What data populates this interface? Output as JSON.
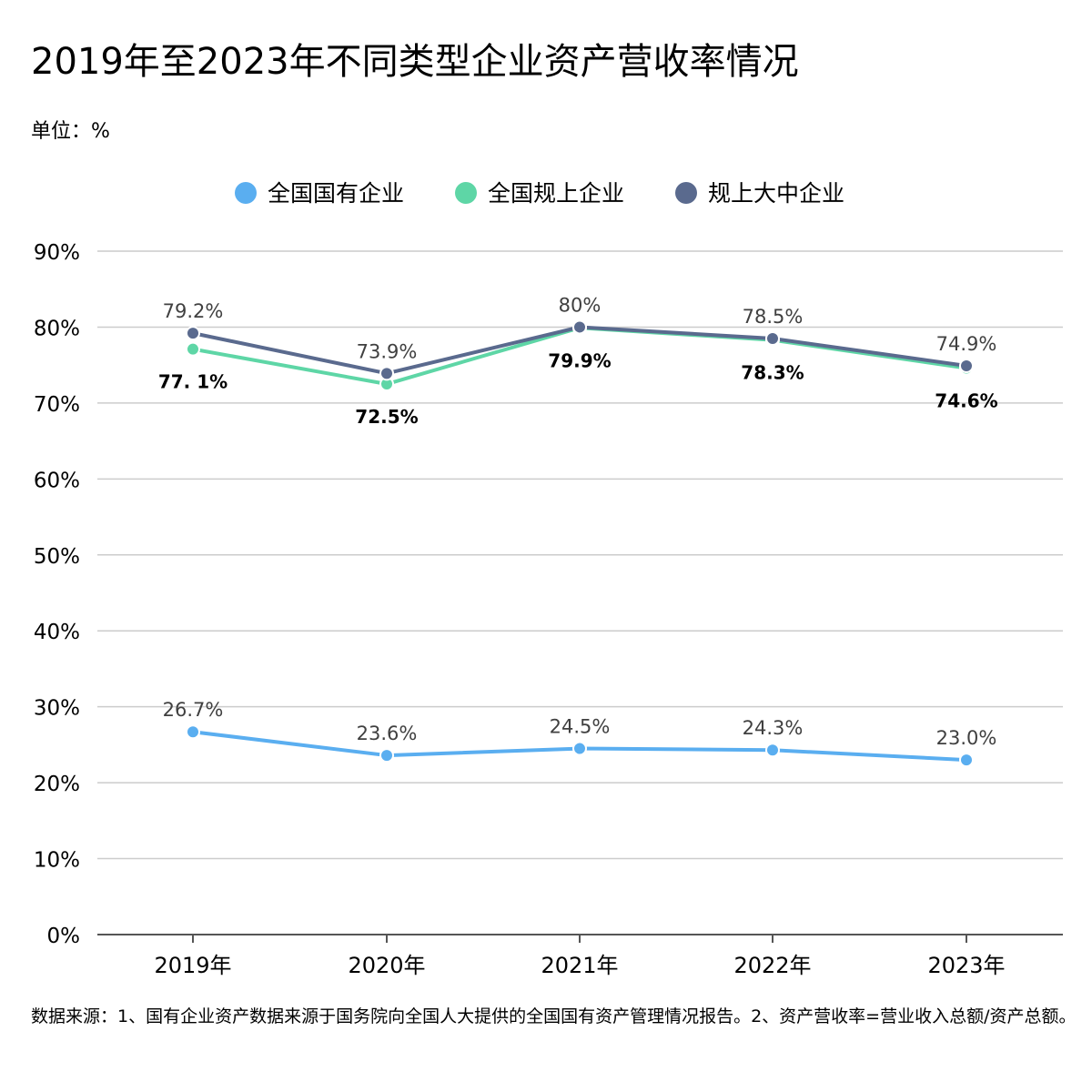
{
  "title": "2019年至2023年不同类型企业资产营收率情况",
  "unit": "单位：%",
  "source": "数据来源：1、国有企业资产数据来源于国务院向全国人大提供的全国国有资产管理情况报告。2、资产营收率=营业收入总额/资产总额。",
  "colors": {
    "series_1": "#5aaef0",
    "series_2": "#5ed6a6",
    "series_3": "#5a6a8e",
    "grid": "#cccccc",
    "axis": "#555555"
  },
  "chart_data": {
    "type": "line",
    "categories": [
      "2019年",
      "2020年",
      "2021年",
      "2022年",
      "2023年"
    ],
    "y_ticks": [
      "0%",
      "10%",
      "20%",
      "30%",
      "40%",
      "50%",
      "60%",
      "70%",
      "80%",
      "90%"
    ],
    "ylim": [
      0,
      90
    ],
    "ylabel": "",
    "xlabel": "",
    "grid": true,
    "legend": "top-center",
    "series": [
      {
        "name": "全国国有企业",
        "values": [
          26.7,
          23.6,
          24.5,
          24.3,
          23.0
        ],
        "labels": [
          "26.7%",
          "23.6%",
          "24.5%",
          "24.3%",
          "23.0%"
        ],
        "label_position": "above",
        "label_style": "normal"
      },
      {
        "name": "全国规上企业",
        "values": [
          77.1,
          72.5,
          79.9,
          78.3,
          74.6
        ],
        "labels": [
          "77. 1%",
          "72.5%",
          "79.9%",
          "78.3%",
          "74.6%"
        ],
        "label_position": "below",
        "label_style": "bold"
      },
      {
        "name": "规上大中企业",
        "values": [
          79.2,
          73.9,
          80,
          78.5,
          74.9
        ],
        "labels": [
          "79.2%",
          "73.9%",
          "80%",
          "78.5%",
          "74.9%"
        ],
        "label_position": "above",
        "label_style": "normal"
      }
    ]
  }
}
